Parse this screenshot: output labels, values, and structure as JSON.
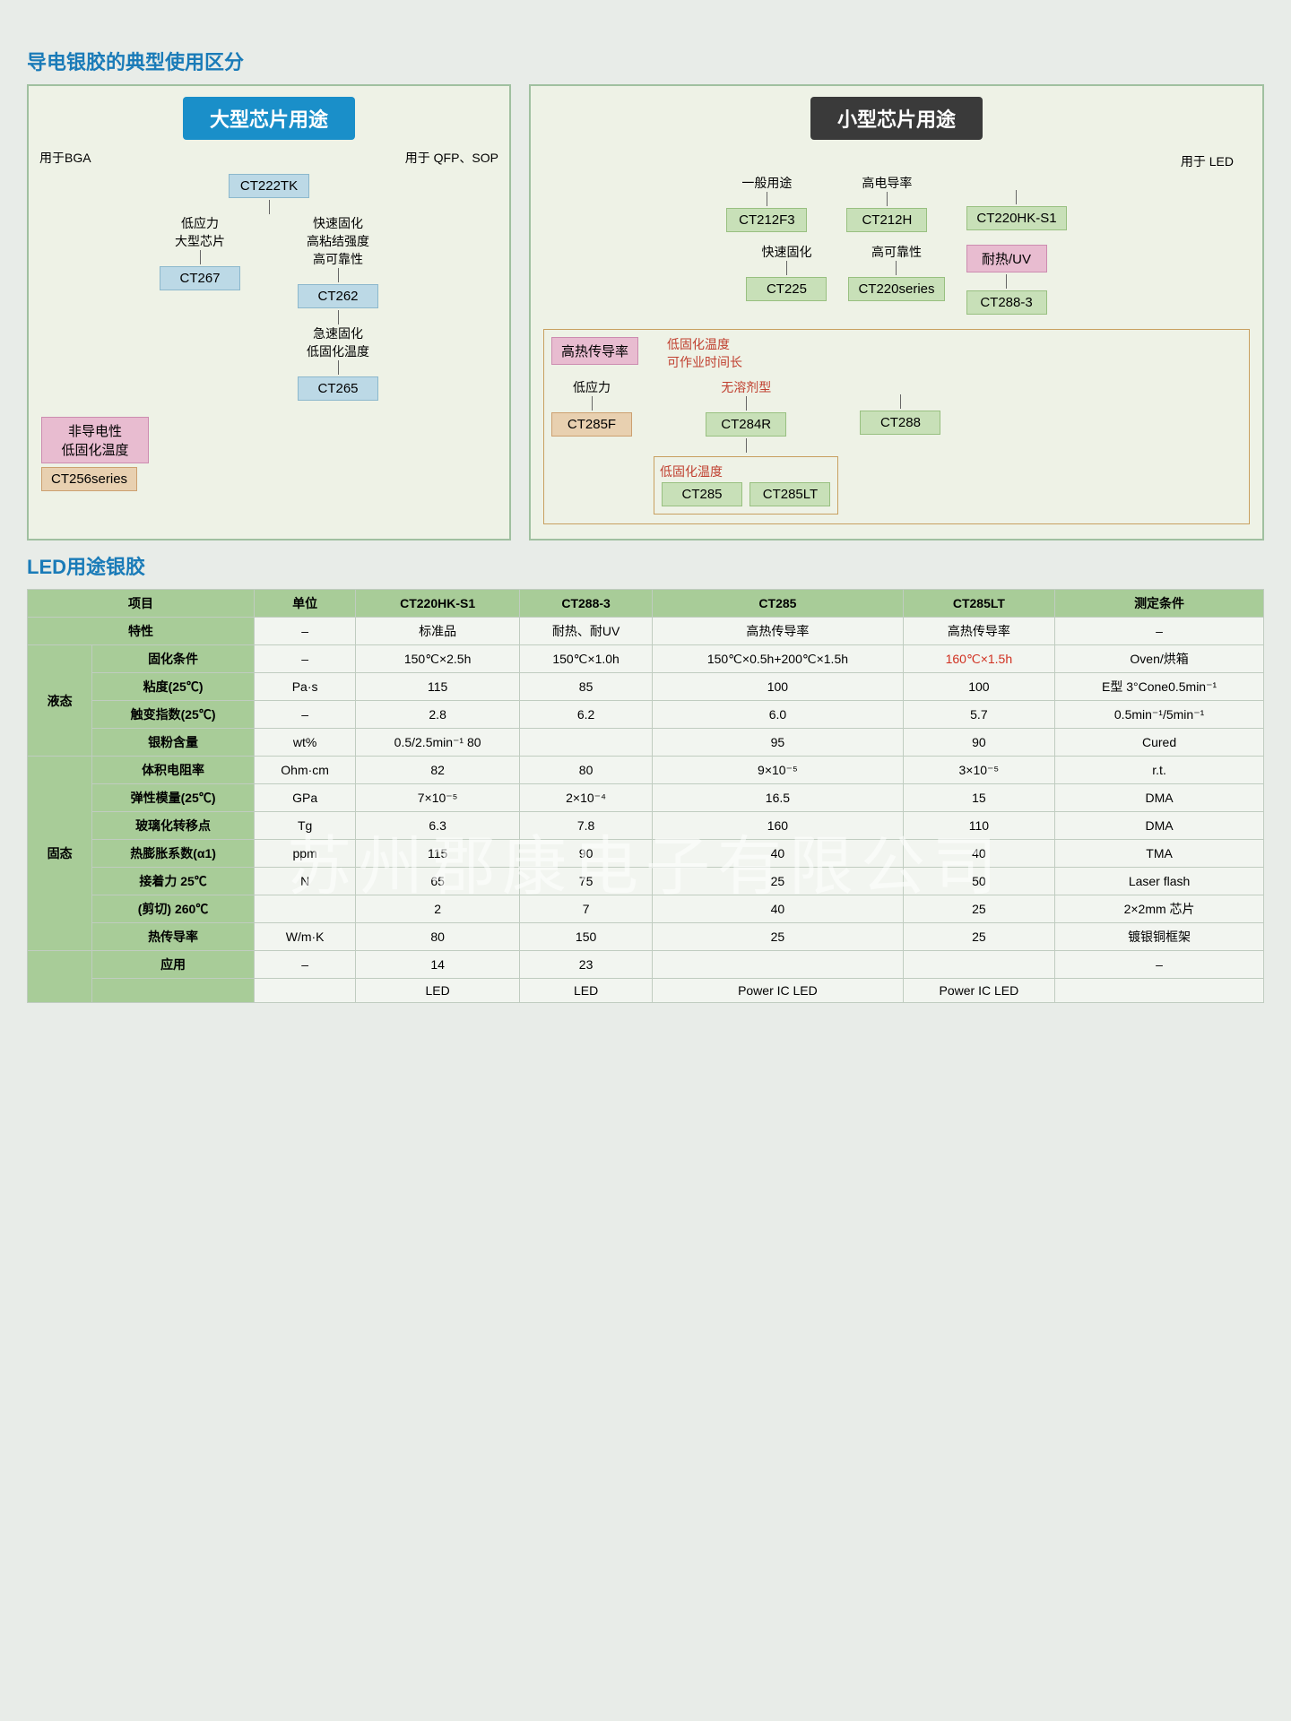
{
  "titles": {
    "main": "导电银胶的典型使用区分",
    "led": "LED用途银胶"
  },
  "left_diagram": {
    "header": "大型芯片用途",
    "bga": "用于BGA",
    "qfp": "用于 QFP、SOP",
    "ct222": "CT222TK",
    "low_stress": "低应力\n大型芯片",
    "fast_cure": "快速固化\n高粘结强度\n高可靠性",
    "ct267": "CT267",
    "ct262": "CT262",
    "rapid": "急速固化\n低固化温度",
    "ct265": "CT265",
    "noncond": "非导电性\n低固化温度",
    "ct256": "CT256series"
  },
  "right_diagram": {
    "header": "小型芯片用途",
    "for_led": "用于 LED",
    "general": "一般用途",
    "high_cond": "高电导率",
    "ct212f3": "CT212F3",
    "ct212h": "CT212H",
    "ct220hk": "CT220HK-S1",
    "fast": "快速固化",
    "high_rel": "高可靠性",
    "uv": "耐热/UV",
    "ct225": "CT225",
    "ct220s": "CT220series",
    "ct288_3": "CT288-3",
    "high_heat": "高热传导率",
    "low_cure_time": "低固化温度\n可作业时间长",
    "low_stress2": "低应力",
    "no_solvent": "无溶剂型",
    "ct288": "CT288",
    "ct285f": "CT285F",
    "ct284r": "CT284R",
    "low_cure": "低固化温度",
    "ct285": "CT285",
    "ct285lt": "CT285LT"
  },
  "table": {
    "columns": [
      "项目",
      "单位",
      "CT220HK-S1",
      "CT288-3",
      "CT285",
      "CT285LT",
      "测定条件"
    ],
    "feat_row": [
      "特性",
      "–",
      "标准品",
      "耐热、耐UV",
      "高热传导率",
      "高热传导率",
      "–"
    ],
    "rows": [
      {
        "group": "液态",
        "label": "固化条件",
        "unit": "–",
        "v": [
          "150℃×2.5h",
          "150℃×1.0h",
          "150℃×0.5h+200℃×1.5h",
          "160℃×1.5h"
        ],
        "cond": "Oven/烘箱",
        "red_col": 4
      },
      {
        "group": "液态",
        "label": "粘度(25℃)",
        "unit": "Pa·s",
        "v": [
          "115",
          "85",
          "100",
          "100"
        ],
        "cond": "E型 3°Cone0.5min⁻¹"
      },
      {
        "group": "液态",
        "label": "触变指数(25℃)",
        "unit": "–",
        "v": [
          "2.8",
          "6.2",
          "6.0",
          "5.7"
        ],
        "cond": "0.5min⁻¹/5min⁻¹"
      },
      {
        "group": "液态",
        "label": "银粉含量",
        "unit": "wt%",
        "v": [
          "0.5/2.5min⁻¹ 80",
          "",
          "95",
          "90"
        ],
        "cond": "Cured"
      },
      {
        "group": "固态",
        "label": "体积电阻率",
        "unit": "Ohm·cm",
        "v": [
          "82",
          "80",
          "9×10⁻⁵",
          "3×10⁻⁵"
        ],
        "cond": "r.t."
      },
      {
        "group": "固态",
        "label": "弹性模量(25℃)",
        "unit": "GPa",
        "v": [
          "7×10⁻⁵",
          "2×10⁻⁴",
          "16.5",
          "15"
        ],
        "cond": "DMA"
      },
      {
        "group": "固态",
        "label": "玻璃化转移点",
        "unit": "Tg",
        "v": [
          "6.3",
          "7.8",
          "160",
          "110"
        ],
        "cond": "DMA"
      },
      {
        "group": "固态",
        "label": "热膨胀系数(α1)",
        "unit": "ppm",
        "v": [
          "115",
          "90",
          "40",
          "40"
        ],
        "cond": "TMA"
      },
      {
        "group": "固态",
        "label": "接着力 25℃",
        "unit": "N",
        "v": [
          "65",
          "75",
          "25",
          "50"
        ],
        "cond": "Laser flash"
      },
      {
        "group": "固态",
        "label": "(剪切) 260℃",
        "unit": "",
        "v": [
          "2",
          "7",
          "40",
          "25"
        ],
        "cond": "2×2mm 芯片"
      },
      {
        "group": "固态",
        "label": "热传导率",
        "unit": "W/m·K",
        "v": [
          "80",
          "150",
          "25",
          "25"
        ],
        "cond": "镀银铜框架"
      },
      {
        "group": "",
        "label": "应用",
        "unit": "–",
        "v": [
          "14",
          "23",
          "",
          ""
        ],
        "cond": "–"
      },
      {
        "group": "",
        "label": "",
        "unit": "",
        "v": [
          "LED",
          "LED",
          "Power IC LED",
          "Power IC LED"
        ],
        "cond": ""
      }
    ]
  },
  "watermark": "苏州郡康电子有限公司",
  "colors": {
    "page_bg": "#e8ece8",
    "title_blue": "#1a7bb8",
    "header_blue": "#1a8fc9",
    "header_dark": "#3a3a3a",
    "node_blue": "#bcd9e6",
    "node_pink": "#e8bcd0",
    "node_orange": "#e8d0b0",
    "node_green": "#c8e0b8",
    "table_header": "#a8cc98",
    "table_cell": "#f2f5f0",
    "red": "#d03020"
  }
}
